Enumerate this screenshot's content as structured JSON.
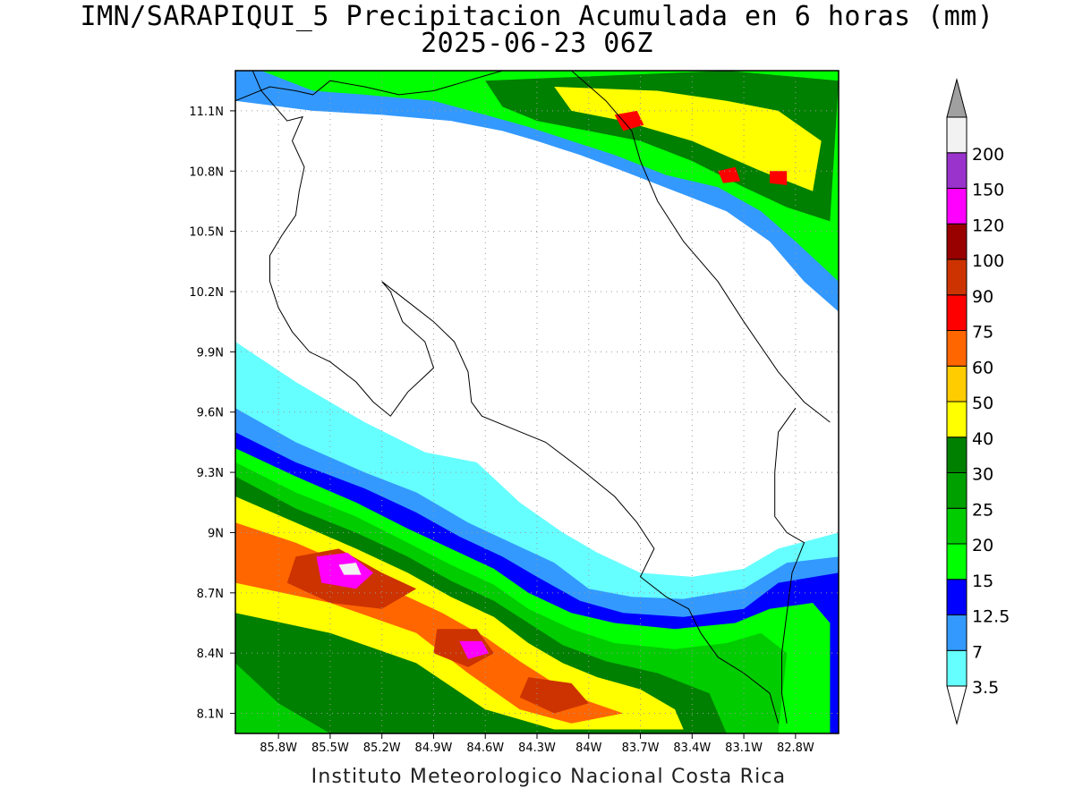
{
  "title": {
    "line1": "IMN/SARAPIQUI_5 Precipitacion Acumulada en 6 horas (mm)",
    "line2": "2025-06-23 06Z"
  },
  "credit": "Instituto Meteorologico Nacional Costa Rica",
  "map": {
    "lon_range": [
      -86.05,
      -82.55
    ],
    "lat_range": [
      8.0,
      11.3
    ],
    "lon_ticks": [
      {
        "value": -85.8,
        "label": "85.8W"
      },
      {
        "value": -85.5,
        "label": "85.5W"
      },
      {
        "value": -85.2,
        "label": "85.2W"
      },
      {
        "value": -84.9,
        "label": "84.9W"
      },
      {
        "value": -84.6,
        "label": "84.6W"
      },
      {
        "value": -84.3,
        "label": "84.3W"
      },
      {
        "value": -84.0,
        "label": "84W"
      },
      {
        "value": -83.7,
        "label": "83.7W"
      },
      {
        "value": -83.4,
        "label": "83.4W"
      },
      {
        "value": -83.1,
        "label": "83.1W"
      },
      {
        "value": -82.8,
        "label": "82.8W"
      }
    ],
    "lat_ticks": [
      {
        "value": 11.1,
        "label": "11.1N"
      },
      {
        "value": 10.8,
        "label": "10.8N"
      },
      {
        "value": 10.5,
        "label": "10.5N"
      },
      {
        "value": 10.2,
        "label": "10.2N"
      },
      {
        "value": 9.9,
        "label": "9.9N"
      },
      {
        "value": 9.6,
        "label": "9.6N"
      },
      {
        "value": 9.3,
        "label": "9.3N"
      },
      {
        "value": 9.0,
        "label": "9N"
      },
      {
        "value": 8.7,
        "label": "8.7N"
      },
      {
        "value": 8.4,
        "label": "8.4N"
      },
      {
        "value": 8.1,
        "label": "8.1N"
      }
    ],
    "grid": "dotted"
  },
  "colorbar": {
    "levels": [
      {
        "label": "3.5",
        "color": "#66ffff"
      },
      {
        "label": "7",
        "color": "#3399ff"
      },
      {
        "label": "12.5",
        "color": "#0000ff"
      },
      {
        "label": "15",
        "color": "#00ff00"
      },
      {
        "label": "20",
        "color": "#00cc00"
      },
      {
        "label": "25",
        "color": "#00a000"
      },
      {
        "label": "30",
        "color": "#008000"
      },
      {
        "label": "40",
        "color": "#ffff00"
      },
      {
        "label": "50",
        "color": "#ffcc00"
      },
      {
        "label": "60",
        "color": "#ff6600"
      },
      {
        "label": "75",
        "color": "#ff0000"
      },
      {
        "label": "90",
        "color": "#cc3300"
      },
      {
        "label": "100",
        "color": "#990000"
      },
      {
        "label": "120",
        "color": "#ff00ff"
      },
      {
        "label": "150",
        "color": "#9933cc"
      },
      {
        "label": "200",
        "color": "#f2f2f2"
      }
    ],
    "under_color": "#ffffff",
    "over_color": "#a0a0a0"
  },
  "precip_regions": [
    {
      "mm": 3.5,
      "path": [
        [
          -86.05,
          9.95
        ],
        [
          -85.7,
          9.75
        ],
        [
          -85.3,
          9.55
        ],
        [
          -84.95,
          9.4
        ],
        [
          -84.65,
          9.35
        ],
        [
          -84.4,
          9.15
        ],
        [
          -84.15,
          9.0
        ],
        [
          -83.95,
          8.9
        ],
        [
          -83.7,
          8.8
        ],
        [
          -83.4,
          8.78
        ],
        [
          -83.1,
          8.82
        ],
        [
          -82.9,
          8.92
        ],
        [
          -82.55,
          9.0
        ],
        [
          -82.55,
          8.0
        ],
        [
          -86.05,
          8.0
        ]
      ]
    },
    {
      "mm": 7,
      "path": [
        [
          -86.05,
          9.62
        ],
        [
          -85.7,
          9.45
        ],
        [
          -85.3,
          9.3
        ],
        [
          -85.0,
          9.2
        ],
        [
          -84.7,
          9.05
        ],
        [
          -84.45,
          8.95
        ],
        [
          -84.2,
          8.85
        ],
        [
          -84.0,
          8.72
        ],
        [
          -83.75,
          8.68
        ],
        [
          -83.45,
          8.67
        ],
        [
          -83.1,
          8.72
        ],
        [
          -82.85,
          8.85
        ],
        [
          -82.55,
          8.88
        ],
        [
          -82.55,
          8.0
        ],
        [
          -86.05,
          8.0
        ]
      ]
    },
    {
      "mm": 12.5,
      "path": [
        [
          -86.05,
          9.5
        ],
        [
          -85.7,
          9.35
        ],
        [
          -85.3,
          9.22
        ],
        [
          -85.0,
          9.1
        ],
        [
          -84.75,
          8.98
        ],
        [
          -84.5,
          8.88
        ],
        [
          -84.3,
          8.78
        ],
        [
          -84.05,
          8.66
        ],
        [
          -83.8,
          8.6
        ],
        [
          -83.45,
          8.58
        ],
        [
          -83.1,
          8.62
        ],
        [
          -82.9,
          8.75
        ],
        [
          -82.55,
          8.8
        ],
        [
          -82.55,
          8.0
        ],
        [
          -86.05,
          8.0
        ]
      ]
    },
    {
      "mm": 15,
      "path": [
        [
          -86.05,
          9.42
        ],
        [
          -85.7,
          9.28
        ],
        [
          -85.35,
          9.15
        ],
        [
          -85.05,
          9.02
        ],
        [
          -84.8,
          8.92
        ],
        [
          -84.55,
          8.82
        ],
        [
          -84.35,
          8.7
        ],
        [
          -84.1,
          8.6
        ],
        [
          -83.85,
          8.55
        ],
        [
          -83.5,
          8.52
        ],
        [
          -83.15,
          8.55
        ],
        [
          -82.95,
          8.62
        ],
        [
          -82.7,
          8.65
        ],
        [
          -82.6,
          8.55
        ],
        [
          -82.6,
          8.0
        ],
        [
          -86.05,
          8.0
        ]
      ]
    },
    {
      "mm": 20,
      "path": [
        [
          -86.05,
          9.35
        ],
        [
          -85.7,
          9.2
        ],
        [
          -85.35,
          9.08
        ],
        [
          -85.05,
          8.95
        ],
        [
          -84.8,
          8.84
        ],
        [
          -84.55,
          8.74
        ],
        [
          -84.35,
          8.62
        ],
        [
          -84.1,
          8.52
        ],
        [
          -83.85,
          8.45
        ],
        [
          -83.5,
          8.42
        ],
        [
          -83.2,
          8.45
        ],
        [
          -83.0,
          8.5
        ],
        [
          -82.85,
          8.4
        ],
        [
          -82.9,
          8.0
        ],
        [
          -86.05,
          8.0
        ]
      ]
    },
    {
      "mm": 30,
      "path": [
        [
          -86.05,
          9.28
        ],
        [
          -85.7,
          9.12
        ],
        [
          -85.35,
          9.0
        ],
        [
          -85.05,
          8.88
        ],
        [
          -84.8,
          8.76
        ],
        [
          -84.55,
          8.66
        ],
        [
          -84.35,
          8.55
        ],
        [
          -84.15,
          8.44
        ],
        [
          -83.9,
          8.36
        ],
        [
          -83.6,
          8.3
        ],
        [
          -83.3,
          8.2
        ],
        [
          -83.2,
          8.0
        ],
        [
          -85.5,
          8.0
        ],
        [
          -85.8,
          8.15
        ],
        [
          -86.05,
          8.35
        ]
      ]
    },
    {
      "mm": 40,
      "path": [
        [
          -86.05,
          9.18
        ],
        [
          -85.7,
          9.05
        ],
        [
          -85.35,
          8.92
        ],
        [
          -85.05,
          8.8
        ],
        [
          -84.8,
          8.68
        ],
        [
          -84.55,
          8.58
        ],
        [
          -84.35,
          8.45
        ],
        [
          -84.15,
          8.35
        ],
        [
          -83.95,
          8.28
        ],
        [
          -83.7,
          8.22
        ],
        [
          -83.5,
          8.12
        ],
        [
          -83.45,
          8.02
        ],
        [
          -84.2,
          8.02
        ],
        [
          -84.6,
          8.12
        ],
        [
          -85.0,
          8.35
        ],
        [
          -85.5,
          8.5
        ],
        [
          -86.05,
          8.6
        ]
      ]
    },
    {
      "mm": 60,
      "path": [
        [
          -86.05,
          9.05
        ],
        [
          -85.7,
          8.95
        ],
        [
          -85.35,
          8.82
        ],
        [
          -85.1,
          8.7
        ],
        [
          -84.85,
          8.6
        ],
        [
          -84.6,
          8.48
        ],
        [
          -84.4,
          8.36
        ],
        [
          -84.2,
          8.25
        ],
        [
          -84.0,
          8.16
        ],
        [
          -83.8,
          8.1
        ],
        [
          -84.1,
          8.05
        ],
        [
          -84.4,
          8.12
        ],
        [
          -84.7,
          8.3
        ],
        [
          -85.0,
          8.5
        ],
        [
          -85.5,
          8.65
        ],
        [
          -86.05,
          8.75
        ]
      ]
    },
    {
      "mm": 90,
      "path": [
        [
          -85.7,
          8.88
        ],
        [
          -85.45,
          8.92
        ],
        [
          -85.2,
          8.8
        ],
        [
          -85.0,
          8.72
        ],
        [
          -85.2,
          8.62
        ],
        [
          -85.5,
          8.65
        ],
        [
          -85.75,
          8.75
        ]
      ]
    },
    {
      "mm": 120,
      "path": [
        [
          -85.58,
          8.88
        ],
        [
          -85.4,
          8.9
        ],
        [
          -85.25,
          8.8
        ],
        [
          -85.35,
          8.72
        ],
        [
          -85.55,
          8.75
        ]
      ]
    },
    {
      "mm": 90,
      "path": [
        [
          -84.88,
          8.52
        ],
        [
          -84.65,
          8.52
        ],
        [
          -84.55,
          8.4
        ],
        [
          -84.7,
          8.33
        ],
        [
          -84.9,
          8.4
        ]
      ]
    },
    {
      "mm": 120,
      "path": [
        [
          -84.75,
          8.46
        ],
        [
          -84.62,
          8.46
        ],
        [
          -84.58,
          8.4
        ],
        [
          -84.7,
          8.37
        ]
      ]
    },
    {
      "mm": 90,
      "path": [
        [
          -84.35,
          8.28
        ],
        [
          -84.1,
          8.25
        ],
        [
          -84.0,
          8.15
        ],
        [
          -84.2,
          8.1
        ],
        [
          -84.4,
          8.18
        ]
      ]
    },
    {
      "mm": 200,
      "path": [
        [
          -85.45,
          8.84
        ],
        [
          -85.35,
          8.85
        ],
        [
          -85.32,
          8.79
        ],
        [
          -85.42,
          8.79
        ]
      ]
    },
    {
      "mm": 7,
      "path": [
        [
          -86.05,
          11.3
        ],
        [
          -82.55,
          11.3
        ],
        [
          -82.55,
          10.1
        ],
        [
          -82.75,
          10.25
        ],
        [
          -82.95,
          10.45
        ],
        [
          -83.2,
          10.6
        ],
        [
          -83.5,
          10.7
        ],
        [
          -83.8,
          10.8
        ],
        [
          -84.05,
          10.88
        ],
        [
          -84.3,
          10.95
        ],
        [
          -84.5,
          11.0
        ],
        [
          -84.8,
          11.05
        ],
        [
          -85.2,
          11.08
        ],
        [
          -85.6,
          11.1
        ],
        [
          -86.05,
          11.15
        ]
      ]
    },
    {
      "mm": 15,
      "path": [
        [
          -85.9,
          11.3
        ],
        [
          -82.55,
          11.3
        ],
        [
          -82.55,
          10.25
        ],
        [
          -82.8,
          10.45
        ],
        [
          -83.0,
          10.6
        ],
        [
          -83.25,
          10.72
        ],
        [
          -83.55,
          10.78
        ],
        [
          -83.85,
          10.88
        ],
        [
          -84.1,
          10.95
        ],
        [
          -84.35,
          11.02
        ],
        [
          -84.6,
          11.08
        ],
        [
          -84.9,
          11.15
        ],
        [
          -85.3,
          11.18
        ],
        [
          -85.6,
          11.2
        ]
      ]
    },
    {
      "mm": 30,
      "path": [
        [
          -84.6,
          11.25
        ],
        [
          -83.2,
          11.3
        ],
        [
          -82.55,
          11.25
        ],
        [
          -82.6,
          10.55
        ],
        [
          -82.85,
          10.62
        ],
        [
          -83.1,
          10.72
        ],
        [
          -83.4,
          10.85
        ],
        [
          -83.7,
          10.95
        ],
        [
          -84.0,
          11.0
        ],
        [
          -84.3,
          11.05
        ],
        [
          -84.5,
          11.12
        ]
      ]
    },
    {
      "mm": 40,
      "path": [
        [
          -84.2,
          11.22
        ],
        [
          -83.6,
          11.2
        ],
        [
          -83.2,
          11.15
        ],
        [
          -82.9,
          11.1
        ],
        [
          -82.65,
          10.95
        ],
        [
          -82.7,
          10.7
        ],
        [
          -83.0,
          10.8
        ],
        [
          -83.4,
          10.95
        ],
        [
          -83.8,
          11.05
        ],
        [
          -84.1,
          11.1
        ]
      ]
    },
    {
      "mm": 75,
      "path": [
        [
          -83.85,
          11.08
        ],
        [
          -83.72,
          11.1
        ],
        [
          -83.68,
          11.03
        ],
        [
          -83.8,
          11.0
        ]
      ]
    },
    {
      "mm": 75,
      "path": [
        [
          -82.95,
          10.8
        ],
        [
          -82.85,
          10.8
        ],
        [
          -82.85,
          10.73
        ],
        [
          -82.95,
          10.74
        ]
      ]
    },
    {
      "mm": 75,
      "path": [
        [
          -83.25,
          10.8
        ],
        [
          -83.15,
          10.82
        ],
        [
          -83.12,
          10.75
        ],
        [
          -83.22,
          10.74
        ]
      ]
    }
  ],
  "land_outline": [
    [
      [
        -85.95,
        11.3
      ],
      [
        -85.9,
        11.2
      ],
      [
        -85.82,
        11.12
      ],
      [
        -85.75,
        11.05
      ],
      [
        -85.66,
        11.07
      ],
      [
        -85.72,
        10.95
      ],
      [
        -85.65,
        10.82
      ],
      [
        -85.68,
        10.7
      ],
      [
        -85.7,
        10.58
      ],
      [
        -85.78,
        10.48
      ],
      [
        -85.85,
        10.38
      ],
      [
        -85.85,
        10.25
      ],
      [
        -85.8,
        10.12
      ],
      [
        -85.72,
        10.0
      ],
      [
        -85.62,
        9.9
      ],
      [
        -85.5,
        9.85
      ],
      [
        -85.35,
        9.75
      ],
      [
        -85.25,
        9.65
      ],
      [
        -85.15,
        9.58
      ],
      [
        -85.05,
        9.7
      ],
      [
        -84.9,
        9.82
      ],
      [
        -84.95,
        9.95
      ],
      [
        -85.08,
        10.05
      ],
      [
        -85.15,
        10.2
      ],
      [
        -85.2,
        10.25
      ],
      [
        -85.05,
        10.15
      ],
      [
        -84.9,
        10.05
      ],
      [
        -84.78,
        9.95
      ],
      [
        -84.7,
        9.8
      ],
      [
        -84.68,
        9.65
      ],
      [
        -84.62,
        9.58
      ],
      [
        -84.45,
        9.52
      ],
      [
        -84.25,
        9.45
      ],
      [
        -84.05,
        9.32
      ],
      [
        -83.85,
        9.18
      ],
      [
        -83.72,
        9.05
      ],
      [
        -83.62,
        8.92
      ],
      [
        -83.7,
        8.78
      ],
      [
        -83.55,
        8.68
      ],
      [
        -83.42,
        8.62
      ],
      [
        -83.35,
        8.5
      ],
      [
        -83.25,
        8.38
      ],
      [
        -83.1,
        8.3
      ],
      [
        -82.95,
        8.2
      ],
      [
        -82.9,
        8.05
      ]
    ],
    [
      [
        -84.1,
        11.3
      ],
      [
        -83.9,
        11.15
      ],
      [
        -83.75,
        11.0
      ],
      [
        -83.7,
        10.85
      ],
      [
        -83.6,
        10.65
      ],
      [
        -83.45,
        10.45
      ],
      [
        -83.25,
        10.25
      ],
      [
        -83.1,
        10.05
      ],
      [
        -82.9,
        9.8
      ],
      [
        -82.75,
        9.65
      ],
      [
        -82.6,
        9.55
      ]
    ],
    [
      [
        -82.8,
        9.62
      ],
      [
        -82.9,
        9.5
      ],
      [
        -82.92,
        9.3
      ],
      [
        -82.92,
        9.08
      ],
      [
        -82.85,
        9.0
      ],
      [
        -82.75,
        8.95
      ],
      [
        -82.82,
        8.8
      ],
      [
        -82.85,
        8.6
      ],
      [
        -82.88,
        8.4
      ],
      [
        -82.88,
        8.2
      ],
      [
        -82.85,
        8.05
      ]
    ],
    [
      [
        -86.05,
        11.15
      ],
      [
        -85.85,
        11.22
      ],
      [
        -85.7,
        11.2
      ],
      [
        -85.6,
        11.18
      ],
      [
        -85.5,
        11.25
      ],
      [
        -85.3,
        11.22
      ],
      [
        -85.1,
        11.18
      ],
      [
        -84.9,
        11.2
      ],
      [
        -84.7,
        11.25
      ],
      [
        -84.5,
        11.3
      ]
    ]
  ]
}
